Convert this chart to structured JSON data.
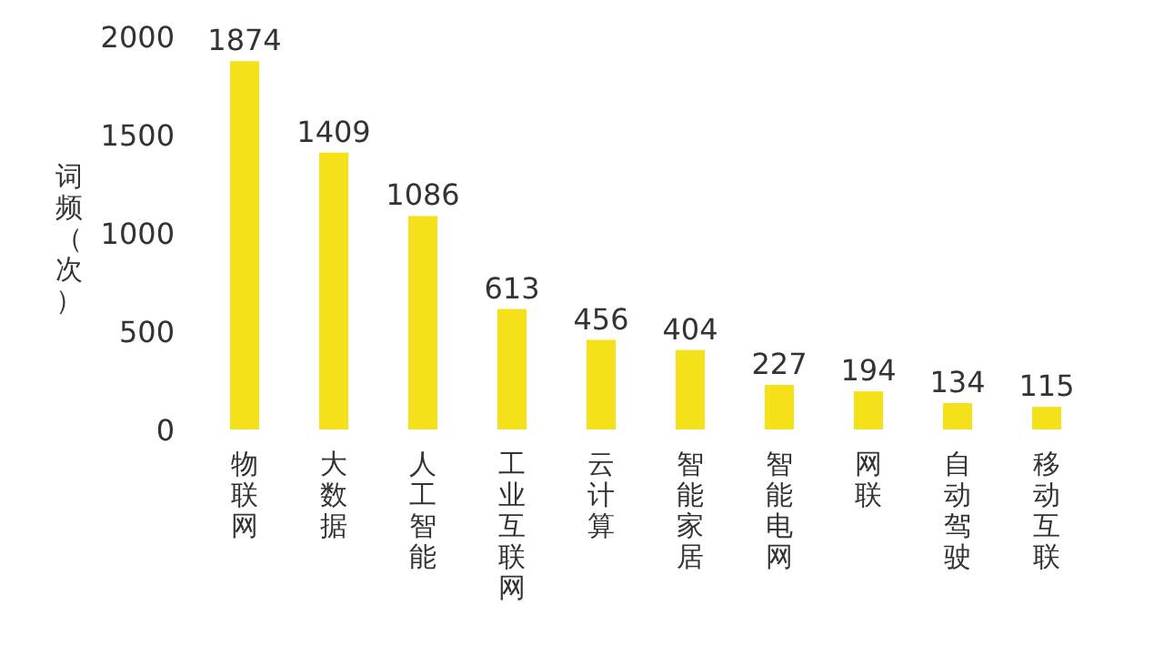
{
  "chart_data": {
    "type": "bar",
    "ylabel": "词频（次）",
    "categories": [
      "物联网",
      "大数据",
      "人工智能",
      "工业互联网",
      "云计算",
      "智能家居",
      "智能电网",
      "网联",
      "自动驾驶",
      "移动互联"
    ],
    "values": [
      1874,
      1409,
      1086,
      613,
      456,
      404,
      227,
      194,
      134,
      115
    ],
    "color": "#f5e11a",
    "ylim": [
      0,
      2000
    ],
    "yticks": [
      0,
      500,
      1000,
      1500,
      2000
    ],
    "data_labels": true
  }
}
